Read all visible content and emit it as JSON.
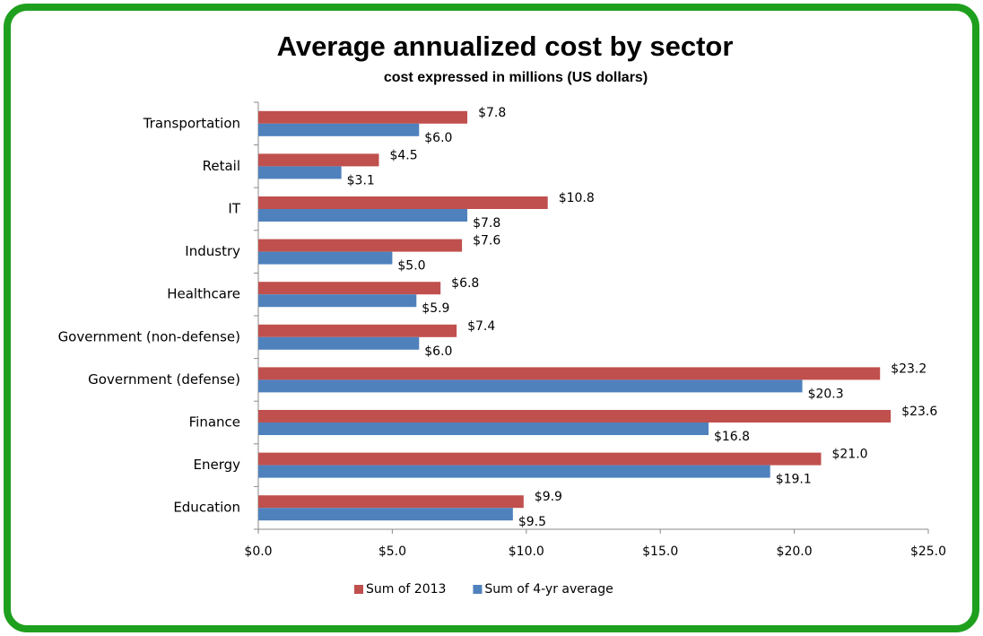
{
  "chart_data": {
    "type": "hbar",
    "title": "Average annualized cost by sector",
    "subtitle": "cost expressed  in millions (US dollars)",
    "categories": [
      "Transportation",
      "Retail",
      "IT",
      "Industry",
      "Healthcare",
      "Government (non-defense)",
      "Government (defense)",
      "Finance",
      "Energy",
      "Education"
    ],
    "series": [
      {
        "name": "Sum of 2013",
        "color": "#c0504d",
        "values": [
          7.8,
          4.5,
          10.8,
          7.6,
          6.8,
          7.4,
          23.2,
          23.6,
          21.0,
          9.9
        ],
        "value_labels": [
          "$7.8",
          "$4.5",
          "$10.8",
          "$7.6",
          "$6.8",
          "$7.4",
          "$23.2",
          "$23.6",
          "$21.0",
          "$9.9"
        ]
      },
      {
        "name": "Sum of 4-yr average",
        "color": "#4f81bd",
        "values": [
          6.0,
          3.1,
          7.8,
          5.0,
          5.9,
          6.0,
          20.3,
          16.8,
          19.1,
          9.5
        ],
        "value_labels": [
          "$6.0",
          "$3.1",
          "$7.8",
          "$5.0",
          "$5.9",
          "$6.0",
          "$20.3",
          "$16.8",
          "$19.1",
          "$9.5"
        ]
      }
    ],
    "xlim": [
      0,
      25
    ],
    "xticks": [
      {
        "value": 0,
        "label": "$0.0"
      },
      {
        "value": 5,
        "label": "$5.0"
      },
      {
        "value": 10,
        "label": "$10.0"
      },
      {
        "value": 15,
        "label": "$15.0"
      },
      {
        "value": 20,
        "label": "$20.0"
      },
      {
        "value": 25,
        "label": "$25.0"
      }
    ],
    "legend": "bottom",
    "grid": false
  }
}
